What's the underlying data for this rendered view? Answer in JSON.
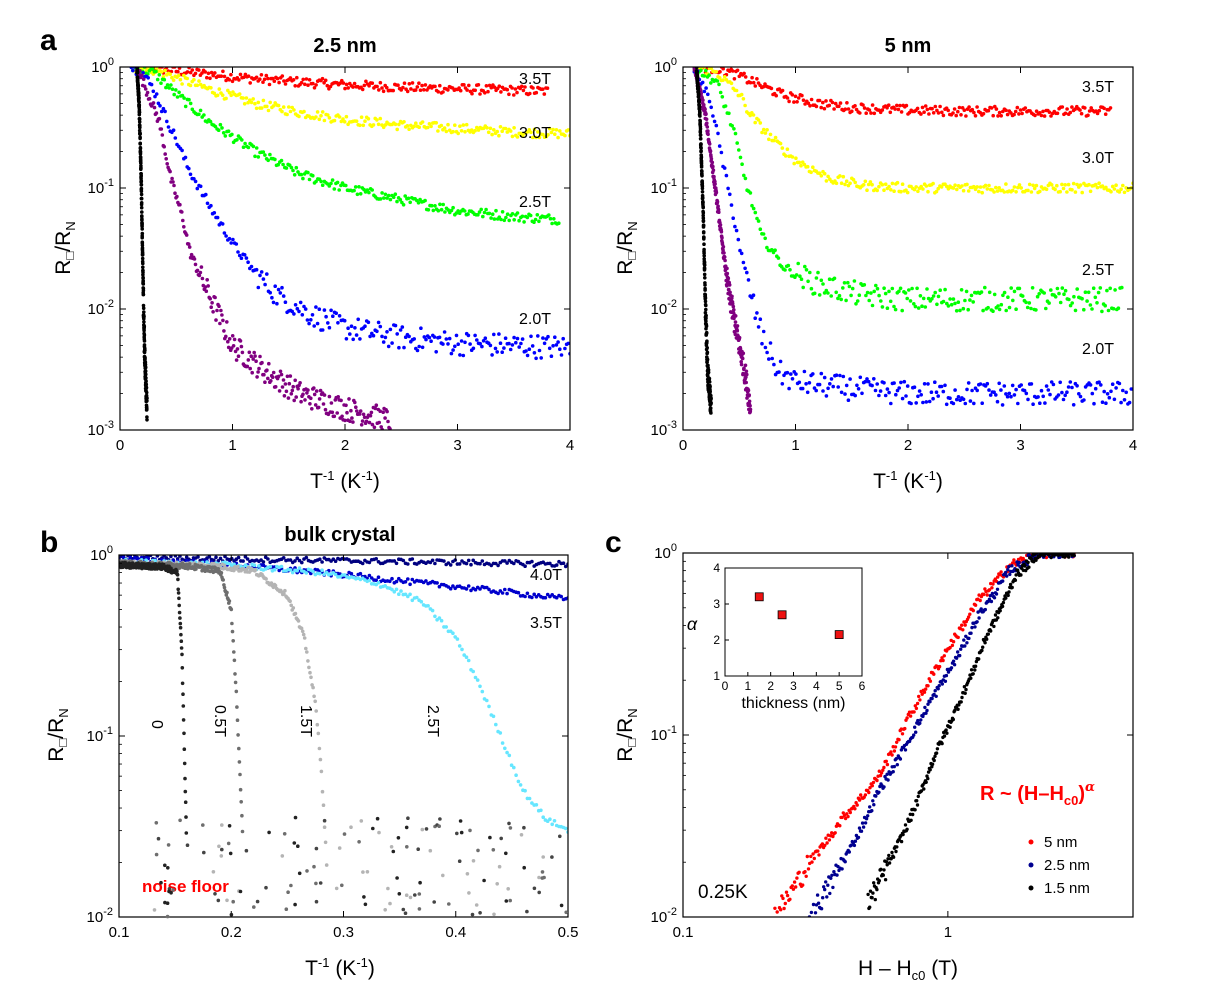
{
  "panel_labels": {
    "a": "a",
    "b": "b",
    "c": "c"
  },
  "chart_data": [
    {
      "id": "a-left",
      "type": "scatter",
      "title": "2.5 nm",
      "xlabel": "T-1 (K-1)",
      "ylabel": "R□/RN",
      "xlim": [
        0,
        4
      ],
      "ylim": [
        0.001,
        1
      ],
      "yscale": "log",
      "xticks": [
        "0",
        "1",
        "2",
        "3",
        "4"
      ],
      "yticks": [
        "10-3",
        "10-2",
        "10-1",
        "100"
      ],
      "series": [
        {
          "name": "3.5T",
          "color": "#ff0000",
          "x": [
            0.1,
            0.3,
            0.5,
            0.8,
            1.2,
            1.6,
            2.0,
            2.5,
            3.0,
            3.5,
            3.8
          ],
          "y": [
            1.0,
            0.98,
            0.93,
            0.87,
            0.8,
            0.75,
            0.71,
            0.68,
            0.66,
            0.64,
            0.63
          ]
        },
        {
          "name": "3.0T",
          "color": "#ffff00",
          "x": [
            0.1,
            0.3,
            0.5,
            0.8,
            1.2,
            1.6,
            2.0,
            2.5,
            3.0,
            3.5,
            4.0
          ],
          "y": [
            1.0,
            0.95,
            0.82,
            0.65,
            0.5,
            0.42,
            0.37,
            0.33,
            0.31,
            0.29,
            0.28
          ]
        },
        {
          "name": "2.5T",
          "color": "#00ff00",
          "x": [
            0.1,
            0.3,
            0.5,
            0.8,
            1.2,
            1.6,
            2.0,
            2.5,
            3.0,
            3.5,
            3.9
          ],
          "y": [
            1.0,
            0.9,
            0.6,
            0.35,
            0.2,
            0.13,
            0.1,
            0.08,
            0.065,
            0.058,
            0.055
          ]
        },
        {
          "name": "2.0T",
          "color": "#0000ff",
          "x": [
            0.1,
            0.2,
            0.3,
            0.4,
            0.5,
            0.6,
            0.8,
            1.0,
            1.2,
            1.4,
            1.7,
            2.0,
            2.5,
            3.0,
            3.5,
            4.0
          ],
          "y": [
            1.0,
            0.9,
            0.65,
            0.4,
            0.25,
            0.15,
            0.07,
            0.035,
            0.02,
            0.013,
            0.009,
            0.007,
            0.0058,
            0.0052,
            0.005,
            0.0048
          ]
        },
        {
          "name": "",
          "color": "#800080",
          "x": [
            0.15,
            0.25,
            0.35,
            0.45,
            0.55,
            0.62,
            0.7,
            1.0,
            1.3,
            1.6,
            2.0,
            2.4
          ],
          "y": [
            1.0,
            0.6,
            0.35,
            0.12,
            0.06,
            0.03,
            0.02,
            0.005,
            0.003,
            0.002,
            0.0015,
            0.0012
          ]
        },
        {
          "name": "",
          "color": "#000000",
          "x": [
            0.15,
            0.17,
            0.19,
            0.2,
            0.21,
            0.22,
            0.24
          ],
          "y": [
            1.0,
            0.5,
            0.1,
            0.03,
            0.01,
            0.004,
            0.0015
          ]
        }
      ]
    },
    {
      "id": "a-right",
      "type": "scatter",
      "title": "5 nm",
      "xlabel": "T-1 (K-1)",
      "ylabel": "R□/RN",
      "xlim": [
        0,
        4
      ],
      "ylim": [
        0.001,
        1
      ],
      "yscale": "log",
      "xticks": [
        "0",
        "1",
        "2",
        "3",
        "4"
      ],
      "yticks": [
        "10-3",
        "10-2",
        "10-1",
        "100"
      ],
      "series": [
        {
          "name": "3.5T",
          "color": "#ff0000",
          "x": [
            0.1,
            0.3,
            0.5,
            0.7,
            0.9,
            1.2,
            1.5,
            2.0,
            2.5,
            3.0,
            3.5,
            3.8
          ],
          "y": [
            1.0,
            0.97,
            0.85,
            0.7,
            0.58,
            0.5,
            0.46,
            0.44,
            0.43,
            0.43,
            0.43,
            0.43
          ]
        },
        {
          "name": "3.0T",
          "color": "#ffff00",
          "x": [
            0.1,
            0.3,
            0.5,
            0.6,
            0.8,
            1.0,
            1.3,
            1.6,
            2.0,
            2.5,
            3.0,
            3.5,
            4.0
          ],
          "y": [
            1.0,
            0.9,
            0.6,
            0.4,
            0.25,
            0.17,
            0.12,
            0.105,
            0.1,
            0.1,
            0.1,
            0.1,
            0.1
          ]
        },
        {
          "name": "2.5T",
          "color": "#00ff00",
          "x": [
            0.1,
            0.3,
            0.45,
            0.55,
            0.7,
            0.9,
            1.2,
            1.6,
            2.0,
            2.5,
            3.0,
            3.5,
            3.9
          ],
          "y": [
            1.0,
            0.75,
            0.3,
            0.12,
            0.04,
            0.022,
            0.016,
            0.013,
            0.012,
            0.012,
            0.012,
            0.012,
            0.012
          ]
        },
        {
          "name": "2.0T",
          "color": "#0000ff",
          "x": [
            0.1,
            0.25,
            0.4,
            0.55,
            0.7,
            0.85,
            1.0,
            1.5,
            2.0,
            2.5,
            3.0,
            3.5,
            4.0
          ],
          "y": [
            1.0,
            0.5,
            0.1,
            0.02,
            0.006,
            0.003,
            0.0025,
            0.0022,
            0.002,
            0.002,
            0.002,
            0.002,
            0.002
          ]
        },
        {
          "name": "",
          "color": "#800080",
          "x": [
            0.1,
            0.2,
            0.3,
            0.4,
            0.5,
            0.55,
            0.6
          ],
          "y": [
            1.0,
            0.4,
            0.08,
            0.015,
            0.005,
            0.003,
            0.0015
          ]
        },
        {
          "name": "",
          "color": "#000000",
          "x": [
            0.12,
            0.15,
            0.18,
            0.2,
            0.22,
            0.25
          ],
          "y": [
            1.0,
            0.4,
            0.06,
            0.01,
            0.003,
            0.0015
          ]
        }
      ]
    },
    {
      "id": "b",
      "type": "scatter",
      "title": "bulk crystal",
      "xlabel": "T-1 (K-1)",
      "ylabel": "R□/RN",
      "xlim": [
        0.1,
        0.5
      ],
      "ylim": [
        0.01,
        1
      ],
      "yscale": "log",
      "xticks": [
        "0.1",
        "0.2",
        "0.3",
        "0.4",
        "0.5"
      ],
      "yticks": [
        "10-2",
        "10-1",
        "100"
      ],
      "annotation": "noise floor",
      "series": [
        {
          "name": "4.0T",
          "color": "#000080",
          "x": [
            0.1,
            0.15,
            0.2,
            0.25,
            0.3,
            0.35,
            0.4,
            0.45,
            0.5
          ],
          "y": [
            0.97,
            0.96,
            0.95,
            0.94,
            0.93,
            0.92,
            0.91,
            0.9,
            0.89
          ]
        },
        {
          "name": "3.5T",
          "color": "#0000cc",
          "x": [
            0.1,
            0.15,
            0.2,
            0.25,
            0.3,
            0.35,
            0.4,
            0.45,
            0.5
          ],
          "y": [
            0.95,
            0.92,
            0.88,
            0.83,
            0.78,
            0.72,
            0.67,
            0.62,
            0.57
          ]
        },
        {
          "name": "2.5T",
          "color": "#66e6ff",
          "x": [
            0.1,
            0.2,
            0.28,
            0.33,
            0.37,
            0.4,
            0.42,
            0.44,
            0.46,
            0.48,
            0.5
          ],
          "y": [
            0.92,
            0.88,
            0.8,
            0.7,
            0.55,
            0.35,
            0.2,
            0.1,
            0.05,
            0.035,
            0.03
          ]
        },
        {
          "name": "1.5T",
          "color": "#b4b4b4",
          "x": [
            0.1,
            0.18,
            0.22,
            0.25,
            0.265,
            0.275,
            0.28,
            0.285
          ],
          "y": [
            0.9,
            0.88,
            0.82,
            0.6,
            0.35,
            0.15,
            0.07,
            0.02
          ]
        },
        {
          "name": "0.5T",
          "color": "#6e6e6e",
          "x": [
            0.1,
            0.16,
            0.19,
            0.2,
            0.205,
            0.21
          ],
          "y": [
            0.9,
            0.87,
            0.82,
            0.5,
            0.15,
            0.03
          ]
        },
        {
          "name": "0",
          "color": "#222222",
          "x": [
            0.1,
            0.14,
            0.152,
            0.156,
            0.16
          ],
          "y": [
            0.88,
            0.86,
            0.8,
            0.3,
            0.03
          ]
        }
      ]
    },
    {
      "id": "c",
      "type": "scatter",
      "xlabel": "H – Hc0 (T)",
      "ylabel": "R□/RN",
      "xscale": "log",
      "yscale": "log",
      "xlim": [
        0.1,
        5
      ],
      "ylim": [
        0.01,
        1
      ],
      "xticks": [
        "0.1",
        "1"
      ],
      "yticks": [
        "10-2",
        "10-1",
        "100"
      ],
      "annotation": "R ~ (H–Hc0)α",
      "temperature": "0.25K",
      "series": [
        {
          "name": "5 nm",
          "color": "#ff0000",
          "x": [
            0.22,
            0.3,
            0.4,
            0.55,
            0.7,
            0.85,
            1.0,
            1.3,
            1.7,
            2.2,
            3.0
          ],
          "y": [
            0.01,
            0.02,
            0.035,
            0.06,
            0.12,
            0.2,
            0.3,
            0.55,
            0.85,
            1.0,
            1.0
          ]
        },
        {
          "name": "2.5 nm",
          "color": "#000090",
          "x": [
            0.3,
            0.4,
            0.55,
            0.7,
            0.85,
            1.0,
            1.3,
            1.7,
            2.2,
            3.0
          ],
          "y": [
            0.01,
            0.02,
            0.05,
            0.09,
            0.15,
            0.22,
            0.45,
            0.8,
            1.0,
            1.0
          ]
        },
        {
          "name": "1.5 nm",
          "color": "#000000",
          "x": [
            0.5,
            0.6,
            0.75,
            0.9,
            1.1,
            1.4,
            1.8,
            2.2,
            3.0
          ],
          "y": [
            0.012,
            0.02,
            0.04,
            0.08,
            0.15,
            0.35,
            0.75,
            1.0,
            1.0
          ]
        }
      ],
      "inset": {
        "xlabel": "thickness (nm)",
        "ylabel": "α",
        "xlim": [
          0,
          6
        ],
        "ylim": [
          1,
          4
        ],
        "xticks": [
          "0",
          "1",
          "2",
          "3",
          "4",
          "5",
          "6"
        ],
        "yticks": [
          "1",
          "2",
          "3",
          "4"
        ],
        "points": [
          {
            "x": 1.5,
            "y": 3.2
          },
          {
            "x": 2.5,
            "y": 2.7
          },
          {
            "x": 5.0,
            "y": 2.15
          }
        ]
      }
    }
  ]
}
